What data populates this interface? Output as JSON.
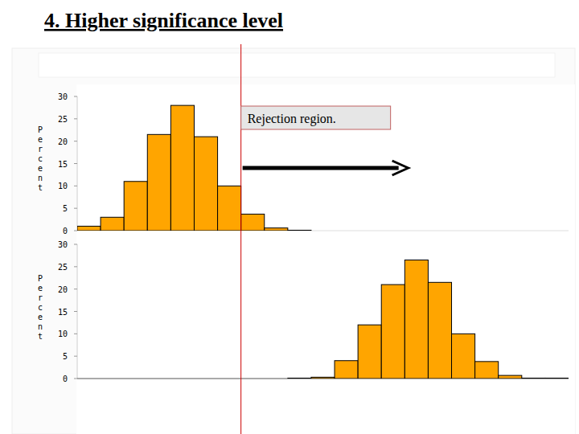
{
  "title": "4. Higher significance level",
  "annotation": "Rejection region.",
  "critical_value": 7,
  "chart_data": [
    {
      "type": "histogram",
      "ylabel": "Percent",
      "bins": [
        0,
        1,
        2,
        3,
        4,
        5,
        6,
        7,
        8,
        9,
        10,
        11,
        12,
        13,
        14,
        15,
        16,
        17,
        18,
        19,
        20,
        21
      ],
      "values": [
        1,
        3,
        11,
        21.5,
        28,
        21,
        10,
        3.7,
        0.6,
        0.1,
        0,
        0,
        0,
        0,
        0,
        0,
        0,
        0,
        0,
        0,
        0
      ],
      "color": "#ffa500",
      "xlim": [
        0,
        21
      ],
      "ylim": [
        0,
        30
      ],
      "yticks": [
        0,
        5,
        10,
        15,
        20,
        25,
        30
      ],
      "tick_labels": "y"
    },
    {
      "type": "histogram",
      "ylabel": "Percent",
      "bins": [
        0,
        1,
        2,
        3,
        4,
        5,
        6,
        7,
        8,
        9,
        10,
        11,
        12,
        13,
        14,
        15,
        16,
        17,
        18,
        19,
        20,
        21
      ],
      "values": [
        0,
        0,
        0,
        0,
        0,
        0,
        0,
        0,
        0,
        0.1,
        0.3,
        4,
        12,
        21,
        26.5,
        21.5,
        10,
        3.8,
        0.7,
        0.1,
        0.1
      ],
      "color": "#ffa500",
      "xlim": [
        0,
        21
      ],
      "ylim": [
        0,
        30
      ],
      "yticks": [
        0,
        5,
        10,
        15,
        20,
        25,
        30
      ],
      "tick_labels": "y"
    }
  ]
}
